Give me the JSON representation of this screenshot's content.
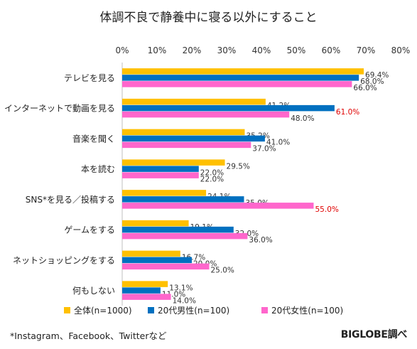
{
  "title": "体調不良で静養中に寝る以外にすること",
  "footnote": "*Instagram、Facebook、Twitterなど",
  "credit": "BIGLOBE調べ",
  "chart_data": {
    "type": "bar",
    "orientation": "horizontal",
    "title": "体調不良で静養中に寝る以外にすること",
    "x_ticks": [
      "0%",
      "10%",
      "20%",
      "30%",
      "40%",
      "50%",
      "60%",
      "70%",
      "80%"
    ],
    "xlim": [
      0,
      80
    ],
    "grid": false,
    "legend_position": "bottom",
    "categories": [
      "テレビを見る",
      "インターネットで動画を見る",
      "音楽を聞く",
      "本を読む",
      "SNS*を見る／投稿する",
      "ゲームをする",
      "ネットショッピングをする",
      "何もしない"
    ],
    "series": [
      {
        "name": "全体(n=1000)",
        "color": "#FFC000",
        "values": [
          69.4,
          41.2,
          35.2,
          29.5,
          24.1,
          19.1,
          16.7,
          13.1
        ]
      },
      {
        "name": "20代男性(n=100)",
        "color": "#0070C0",
        "values": [
          68.0,
          61.0,
          41.0,
          22.0,
          35.0,
          32.0,
          20.0,
          11.0
        ]
      },
      {
        "name": "20代女性(n=100)",
        "color": "#FF66CC",
        "values": [
          66.0,
          48.0,
          37.0,
          22.0,
          55.0,
          36.0,
          25.0,
          14.0
        ]
      }
    ],
    "highlighted_labels_color": "#E00000",
    "highlighted_labels": [
      {
        "series": 1,
        "category": 1
      },
      {
        "series": 2,
        "category": 4
      }
    ]
  }
}
